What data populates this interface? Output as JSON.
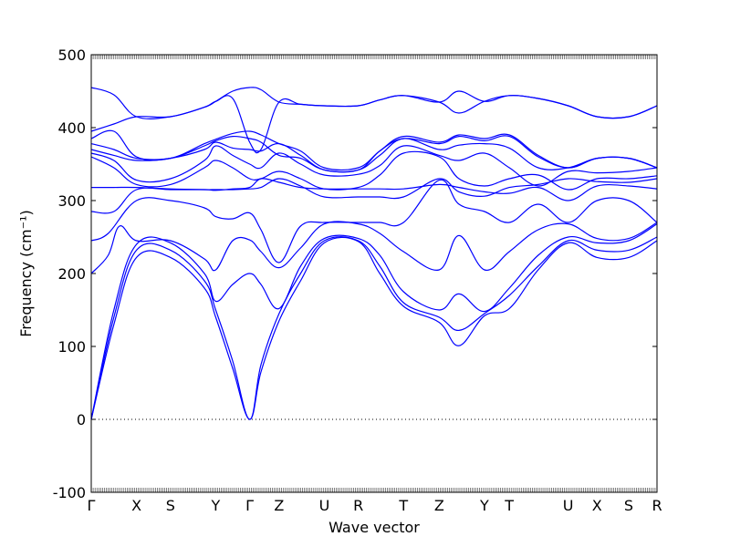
{
  "chart_data": {
    "type": "line",
    "title": "",
    "xlabel": "Wave vector",
    "ylabel": "Frequency (cm⁻¹)",
    "ylim": [
      -100,
      500
    ],
    "yticks": [
      -100,
      0,
      100,
      200,
      300,
      400,
      500
    ],
    "grid": false,
    "zero_reference": 0,
    "band_color": "#0000ff",
    "x_range": [
      0,
      100
    ],
    "kpoints": [
      {
        "label": "Γ",
        "x": 0
      },
      {
        "label": "X",
        "x": 8.0
      },
      {
        "label": "S",
        "x": 14.0
      },
      {
        "label": "Y",
        "x": 22.0
      },
      {
        "label": "Γ",
        "x": 28.0
      },
      {
        "label": "Z",
        "x": 33.2
      },
      {
        "label": "U",
        "x": 41.2
      },
      {
        "label": "R",
        "x": 47.2
      },
      {
        "label": "T",
        "x": 55.2
      },
      {
        "label": "Z",
        "x": 61.5
      },
      {
        "label": "Y",
        "x": 69.5
      },
      {
        "label": "T",
        "x": 73.9
      },
      {
        "label": "U",
        "x": 84.3
      },
      {
        "label": "X",
        "x": 89.4
      },
      {
        "label": "S",
        "x": 95.0
      },
      {
        "label": "R",
        "x": 100
      }
    ],
    "series": [
      {
        "x": [
          0,
          4,
          8,
          14,
          20,
          22,
          25,
          28,
          30,
          33.2,
          37,
          41.2,
          47.2,
          51,
          55.2,
          61.5,
          65,
          69.5,
          73.9,
          79,
          84.3,
          89.4,
          95,
          100
        ],
        "y": [
          0,
          130,
          222,
          222,
          180,
          140,
          70,
          0,
          65,
          135,
          190,
          242,
          244,
          200,
          155,
          133,
          101,
          142,
          152,
          205,
          242,
          222,
          222,
          245
        ]
      },
      {
        "x": [
          0,
          4,
          8,
          14,
          20,
          22,
          25,
          28,
          30,
          33.2,
          37,
          41.2,
          47.2,
          51,
          55.2,
          61.5,
          65,
          69.5,
          73.9,
          79,
          84.3,
          89.4,
          95,
          100
        ],
        "y": [
          0,
          140,
          232,
          232,
          190,
          150,
          80,
          0,
          75,
          145,
          200,
          245,
          245,
          210,
          160,
          140,
          122,
          145,
          170,
          210,
          245,
          232,
          232,
          250
        ]
      },
      {
        "x": [
          0,
          4,
          8,
          14,
          20,
          22,
          25,
          28,
          30,
          33.2,
          37,
          41.2,
          47.2,
          51,
          55.2,
          61.5,
          65,
          69.5,
          73.9,
          79,
          84.3,
          89.4,
          95,
          100
        ],
        "y": [
          0,
          150,
          240,
          242,
          200,
          162,
          185,
          200,
          185,
          152,
          210,
          248,
          248,
          225,
          175,
          150,
          172,
          148,
          180,
          225,
          250,
          242,
          245,
          268
        ]
      },
      {
        "x": [
          0,
          3,
          5,
          8,
          14,
          20,
          22,
          25,
          28,
          30,
          33.2,
          37,
          41.2,
          47.2,
          51,
          55.2,
          61.5,
          65,
          69.5,
          73.9,
          79,
          84.3,
          89.4,
          95,
          100
        ],
        "y": [
          200,
          225,
          265,
          245,
          245,
          220,
          205,
          245,
          246,
          230,
          208,
          235,
          268,
          268,
          255,
          230,
          205,
          252,
          205,
          230,
          260,
          268,
          248,
          248,
          270
        ]
      },
      {
        "x": [
          0,
          3,
          8,
          14,
          20,
          22,
          25,
          28,
          30,
          33.2,
          37,
          41.2,
          47.2,
          51,
          55.2,
          61.5,
          65,
          69.5,
          73.9,
          79,
          84.3,
          89.4,
          95,
          100
        ],
        "y": [
          245,
          255,
          300,
          300,
          290,
          278,
          275,
          283,
          260,
          215,
          265,
          270,
          270,
          270,
          270,
          328,
          295,
          285,
          270,
          295,
          270,
          300,
          300,
          270
        ]
      },
      {
        "x": [
          0,
          4,
          8,
          14,
          20,
          22,
          25,
          28,
          30,
          33.2,
          37,
          41.2,
          47.2,
          51,
          55.2,
          61.5,
          65,
          69.5,
          73.9,
          79,
          84.3,
          89.4,
          95,
          100
        ],
        "y": [
          285,
          285,
          315,
          315,
          315,
          314,
          316,
          318,
          330,
          325,
          318,
          316,
          316,
          316,
          316,
          322,
          318,
          312,
          310,
          318,
          300,
          320,
          320,
          316
        ]
      },
      {
        "x": [
          0,
          4,
          8,
          14,
          20,
          22,
          25,
          28,
          30,
          33.2,
          37,
          41.2,
          47.2,
          51,
          55.2,
          61.5,
          65,
          69.5,
          73.9,
          79,
          84.3,
          89.4,
          95,
          100
        ],
        "y": [
          318,
          318,
          318,
          316,
          315,
          315,
          315,
          316,
          318,
          330,
          320,
          305,
          305,
          305,
          305,
          330,
          312,
          306,
          318,
          322,
          330,
          326,
          325,
          330
        ]
      },
      {
        "x": [
          0,
          4,
          8,
          14,
          20,
          22,
          25,
          28,
          30,
          33.2,
          37,
          41.2,
          47.2,
          51,
          55.2,
          61.5,
          65,
          69.5,
          73.9,
          79,
          84.3,
          89.4,
          95,
          100
        ],
        "y": [
          360,
          345,
          322,
          322,
          345,
          355,
          345,
          330,
          330,
          340,
          330,
          316,
          318,
          335,
          365,
          360,
          330,
          320,
          330,
          335,
          315,
          330,
          330,
          334
        ]
      },
      {
        "x": [
          0,
          4,
          8,
          14,
          20,
          22,
          25,
          28,
          30,
          33.2,
          37,
          41.2,
          47.2,
          51,
          55.2,
          61.5,
          65,
          69.5,
          73.9,
          79,
          84.3,
          89.4,
          95,
          100
        ],
        "y": [
          365,
          355,
          328,
          330,
          355,
          375,
          362,
          350,
          345,
          365,
          350,
          335,
          336,
          348,
          375,
          362,
          355,
          365,
          345,
          320,
          340,
          338,
          340,
          345
        ]
      },
      {
        "x": [
          0,
          4,
          8,
          14,
          20,
          22,
          25,
          28,
          30,
          33.2,
          37,
          41.2,
          47.2,
          51,
          55.2,
          61.5,
          65,
          69.5,
          73.9,
          79,
          84.3,
          89.4,
          95,
          100
        ],
        "y": [
          370,
          362,
          355,
          358,
          370,
          380,
          372,
          370,
          368,
          378,
          362,
          342,
          342,
          362,
          385,
          370,
          376,
          378,
          372,
          345,
          345,
          358,
          358,
          345
        ]
      },
      {
        "x": [
          0,
          4,
          8,
          14,
          20,
          22,
          25,
          28,
          30,
          33.2,
          37,
          41.2,
          47.2,
          51,
          55.2,
          61.5,
          65,
          69.5,
          73.9,
          79,
          84.3,
          89.4,
          95,
          100
        ],
        "y": [
          378,
          370,
          358,
          358,
          375,
          382,
          388,
          385,
          380,
          362,
          358,
          342,
          342,
          368,
          385,
          378,
          388,
          382,
          388,
          360,
          345,
          358,
          358,
          345
        ]
      },
      {
        "x": [
          0,
          4,
          8,
          14,
          20,
          22,
          25,
          28,
          30,
          33.2,
          37,
          41.2,
          47.2,
          51,
          55.2,
          61.5,
          65,
          69.5,
          73.9,
          79,
          84.3,
          89.4,
          95,
          100
        ],
        "y": [
          385,
          395,
          360,
          358,
          378,
          384,
          392,
          395,
          390,
          378,
          368,
          345,
          345,
          368,
          388,
          380,
          390,
          385,
          390,
          362,
          345,
          358,
          358,
          345
        ]
      },
      {
        "x": [
          0,
          4,
          8,
          14,
          20,
          22,
          25,
          28,
          30,
          33.2,
          37,
          41.2,
          47.2,
          51,
          55.2,
          61.5,
          65,
          69.5,
          73.9,
          79,
          84.3,
          89.4,
          95,
          100
        ],
        "y": [
          395,
          405,
          415,
          415,
          428,
          436,
          440,
          380,
          370,
          435,
          432,
          430,
          430,
          438,
          444,
          435,
          420,
          436,
          444,
          440,
          430,
          415,
          415,
          430
        ]
      },
      {
        "x": [
          0,
          4,
          8,
          14,
          20,
          22,
          25,
          28,
          30,
          33.2,
          37,
          41.2,
          47.2,
          51,
          55.2,
          61.5,
          65,
          69.5,
          73.9,
          79,
          84.3,
          89.4,
          95,
          100
        ],
        "y": [
          455,
          445,
          415,
          415,
          428,
          436,
          450,
          455,
          452,
          435,
          432,
          430,
          430,
          438,
          444,
          435,
          450,
          436,
          444,
          440,
          430,
          415,
          415,
          430
        ]
      }
    ]
  }
}
